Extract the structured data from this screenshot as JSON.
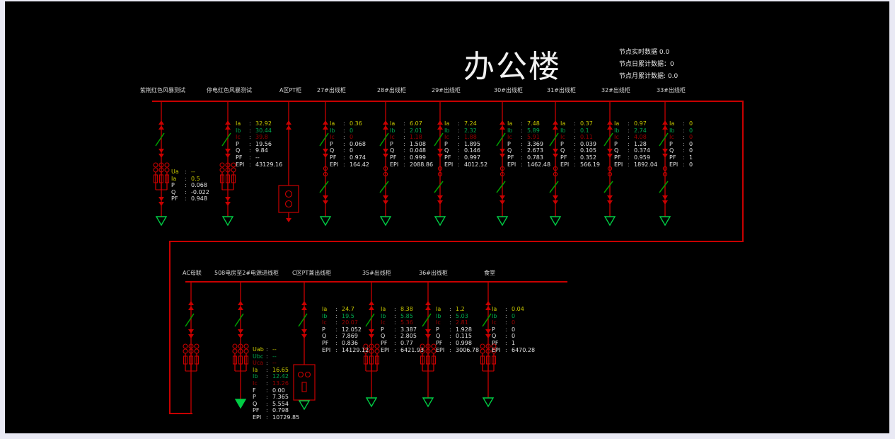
{
  "title": "办公楼",
  "stats": [
    "节点实时数据 0.0",
    "节点日累计数据：0",
    "节点月累计数据: 0.0"
  ],
  "punct_colon": ":",
  "colors": {
    "background": "#000000",
    "bus": "#c80000",
    "phase_a": "#c8c800",
    "phase_b": "#00a84e",
    "phase_c": "#9c0000",
    "switch_green": "#00a000",
    "earth_green": "#00cc44",
    "text": "#e2e2e2",
    "frame": "#e9e9f4"
  },
  "top_section": {
    "feeders": [
      {
        "name": "紫荆红色风暴测试",
        "symbol": "ct",
        "panel": [
          [
            "Ua",
            "--"
          ],
          [
            "Ia",
            "0.5"
          ],
          [
            "P",
            "0.068"
          ],
          [
            "Q",
            "-0.022"
          ],
          [
            "PF",
            "0.948"
          ]
        ]
      },
      {
        "name": "停电红色风暴测试",
        "symbol": "ct",
        "panel": [
          [
            "Ia",
            "32.92"
          ],
          [
            "Ib",
            "30.44"
          ],
          [
            "Ic",
            "39.8"
          ],
          [
            "P",
            "19.56"
          ],
          [
            "Q",
            "9.84"
          ],
          [
            "PF",
            "--"
          ],
          [
            "EPI",
            "43129.16"
          ]
        ]
      },
      {
        "name": "A区PT柜",
        "symbol": "pt",
        "panel": null
      },
      {
        "name": "27#出线柜",
        "symbol": "std",
        "panel": [
          [
            "Ia",
            "0.36"
          ],
          [
            "Ib",
            "0"
          ],
          [
            "Ic",
            "0"
          ],
          [
            "P",
            "0.068"
          ],
          [
            "Q",
            "0"
          ],
          [
            "PF",
            "0.974"
          ],
          [
            "EPI",
            "164.42"
          ]
        ]
      },
      {
        "name": "28#出线柜",
        "symbol": "std",
        "panel": [
          [
            "Ia",
            "6.07"
          ],
          [
            "Ib",
            "2.01"
          ],
          [
            "Ic",
            "1.18"
          ],
          [
            "P",
            "1.508"
          ],
          [
            "Q",
            "0.048"
          ],
          [
            "PF",
            "0.999"
          ],
          [
            "EPI",
            "2088.86"
          ]
        ]
      },
      {
        "name": "29#出线柜",
        "symbol": "std",
        "panel": [
          [
            "Ia",
            "7.24"
          ],
          [
            "Ib",
            "2.32"
          ],
          [
            "Ic",
            "1.88"
          ],
          [
            "P",
            "1.895"
          ],
          [
            "Q",
            "0.146"
          ],
          [
            "PF",
            "0.997"
          ],
          [
            "EPI",
            "4012.52"
          ]
        ]
      },
      {
        "name": "30#出线柜",
        "symbol": "std",
        "panel": [
          [
            "Ia",
            "7.48"
          ],
          [
            "Ib",
            "5.89"
          ],
          [
            "Ic",
            "5.91"
          ],
          [
            "P",
            "3.369"
          ],
          [
            "Q",
            "2.673"
          ],
          [
            "PF",
            "0.783"
          ],
          [
            "EPI",
            "1462.48"
          ]
        ]
      },
      {
        "name": "31#出线柜",
        "symbol": "std",
        "panel": [
          [
            "Ia",
            "0.37"
          ],
          [
            "Ib",
            "0.1"
          ],
          [
            "Ic",
            "0.11"
          ],
          [
            "P",
            "0.039"
          ],
          [
            "Q",
            "0.105"
          ],
          [
            "PF",
            "0.352"
          ],
          [
            "EPI",
            "566.19"
          ]
        ]
      },
      {
        "name": "32#出线柜",
        "symbol": "std",
        "panel": [
          [
            "Ia",
            "0.97"
          ],
          [
            "Ib",
            "2.74"
          ],
          [
            "Ic",
            "4.08"
          ],
          [
            "P",
            "1.28"
          ],
          [
            "Q",
            "0.374"
          ],
          [
            "PF",
            "0.959"
          ],
          [
            "EPI",
            "1892.04"
          ]
        ]
      },
      {
        "name": "33#出线柜",
        "symbol": "std",
        "panel": [
          [
            "Ia",
            "0"
          ],
          [
            "Ib",
            "0"
          ],
          [
            "Ic",
            "0"
          ],
          [
            "P",
            "0"
          ],
          [
            "Q",
            "0"
          ],
          [
            "PF",
            "1"
          ],
          [
            "EPI",
            "0"
          ]
        ]
      }
    ]
  },
  "bottom_section": {
    "feeders": [
      {
        "name": "AC母联",
        "symbol": "tie",
        "panel": null
      },
      {
        "name": "508电房至2#电源进线柜",
        "symbol": "ct-solid",
        "panel": [
          [
            "Uab",
            "--"
          ],
          [
            "Ubc",
            "--"
          ],
          [
            "Uca",
            "--"
          ],
          [
            "Ia",
            "16.65"
          ],
          [
            "Ib",
            "12.42"
          ],
          [
            "Ic",
            "13.26"
          ],
          [
            "F",
            "0.00"
          ],
          [
            "P",
            "7.365"
          ],
          [
            "Q",
            "5.554"
          ],
          [
            "PF",
            "0.798"
          ],
          [
            "EPI",
            "10729.85"
          ]
        ]
      },
      {
        "name": "C区PT兼出线柜",
        "symbol": "meter",
        "panel": [
          [
            "Ia",
            "24.7"
          ],
          [
            "Ib",
            "19.5"
          ],
          [
            "Ic",
            "20.07"
          ],
          [
            "P",
            "12.052"
          ],
          [
            "Q",
            "7.869"
          ],
          [
            "PF",
            "0.836"
          ],
          [
            "EPI",
            "14129.12"
          ]
        ]
      },
      {
        "name": "35#出线柜",
        "symbol": "ct-b",
        "panel": [
          [
            "Ia",
            "8.38"
          ],
          [
            "Ib",
            "5.85"
          ],
          [
            "Ic",
            "5.36"
          ],
          [
            "P",
            "3.387"
          ],
          [
            "Q",
            "2.805"
          ],
          [
            "PF",
            "0.77"
          ],
          [
            "EPI",
            "6421.93"
          ]
        ]
      },
      {
        "name": "36#出线柜",
        "symbol": "ct-b",
        "panel": [
          [
            "Ia",
            "1.2"
          ],
          [
            "Ib",
            "5.03"
          ],
          [
            "Ic",
            "2.81"
          ],
          [
            "P",
            "1.928"
          ],
          [
            "Q",
            "0.115"
          ],
          [
            "PF",
            "0.998"
          ],
          [
            "EPI",
            "3006.78"
          ]
        ]
      },
      {
        "name": "食堂",
        "symbol": "ct-b",
        "panel": [
          [
            "Ia",
            "0.04"
          ],
          [
            "Ib",
            "0"
          ],
          [
            "Ic",
            "0"
          ],
          [
            "P",
            "0"
          ],
          [
            "Q",
            "0"
          ],
          [
            "PF",
            "1"
          ],
          [
            "EPI",
            "6470.28"
          ]
        ]
      }
    ]
  }
}
